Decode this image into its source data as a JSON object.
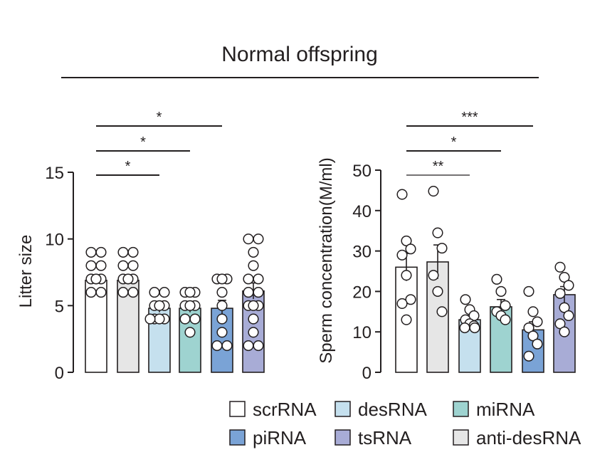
{
  "figure_title": "Normal offspring",
  "colors": {
    "scrRNA": "#ffffff",
    "anti-desRNA": "#e6e6e6",
    "desRNA": "#c5e0ee",
    "miRNA": "#9ed3d0",
    "piRNA": "#7aa3d6",
    "tsRNA": "#a8acd6",
    "ink": "#231f20"
  },
  "legend": {
    "items": [
      {
        "label": "scrRNA",
        "color": "#ffffff"
      },
      {
        "label": "desRNA",
        "color": "#c5e0ee"
      },
      {
        "label": "miRNA",
        "color": "#9ed3d0"
      },
      {
        "label": "piRNA",
        "color": "#7aa3d6"
      },
      {
        "label": "tsRNA",
        "color": "#a8acd6"
      },
      {
        "label": "anti-desRNA",
        "color": "#e6e6e6"
      }
    ]
  },
  "chart_data": [
    {
      "type": "bar",
      "title": "",
      "ylabel": "Litter size",
      "xlabel": "",
      "ylim": [
        0,
        15
      ],
      "yticks": [
        0,
        5,
        10,
        15
      ],
      "categories": [
        "scrRNA",
        "anti-desRNA",
        "desRNA",
        "miRNA",
        "piRNA",
        "tsRNA"
      ],
      "values": [
        6.9,
        6.9,
        4.8,
        4.8,
        4.8,
        6.1
      ],
      "errors": [
        0.3,
        0.3,
        0.3,
        0.3,
        0.6,
        0.6
      ],
      "points": [
        [
          9,
          9,
          8,
          8,
          7,
          7,
          7,
          6,
          6
        ],
        [
          9,
          9,
          8,
          8,
          7,
          7,
          7,
          6,
          6
        ],
        [
          6,
          6,
          5,
          5,
          5,
          4,
          4,
          4,
          4
        ],
        [
          6,
          6,
          6,
          5,
          5,
          5,
          4,
          4,
          3
        ],
        [
          7,
          7,
          7,
          6,
          5,
          4,
          3,
          2,
          2
        ],
        [
          10,
          10,
          9,
          8,
          7,
          7,
          6,
          6,
          5,
          5,
          5,
          4,
          3,
          2,
          2
        ]
      ],
      "significance": [
        {
          "from": 0,
          "to": 2,
          "label": "*"
        },
        {
          "from": 0,
          "to": 3,
          "label": "*"
        },
        {
          "from": 0,
          "to": 4,
          "label": "*"
        }
      ]
    },
    {
      "type": "bar",
      "title": "",
      "ylabel": "Sperm concentration(M/ml)",
      "xlabel": "",
      "ylim": [
        0,
        50
      ],
      "yticks": [
        0,
        10,
        20,
        30,
        40,
        50
      ],
      "categories": [
        "scrRNA",
        "anti-desRNA",
        "desRNA",
        "miRNA",
        "piRNA",
        "tsRNA"
      ],
      "values": [
        26,
        27.3,
        13,
        16.2,
        10.5,
        19.2
      ],
      "errors": [
        3.4,
        4.2,
        1.0,
        1.8,
        2.0,
        2.0
      ],
      "points": [
        [
          44,
          32.5,
          30.5,
          29,
          24,
          18,
          17,
          13
        ],
        [
          44.8,
          34.5,
          30.7,
          24,
          20,
          15
        ],
        [
          18,
          15.5,
          14,
          13,
          12,
          11.5,
          11,
          11
        ],
        [
          23,
          20,
          16.5,
          15,
          14,
          13
        ],
        [
          20,
          15,
          12.5,
          11,
          9,
          7,
          4
        ],
        [
          26,
          23.5,
          21.5,
          19.5,
          16,
          14,
          12,
          10
        ]
      ],
      "significance": [
        {
          "from": 0,
          "to": 2,
          "label": "**"
        },
        {
          "from": 0,
          "to": 3,
          "label": "*"
        },
        {
          "from": 0,
          "to": 4,
          "label": "***"
        }
      ]
    }
  ]
}
